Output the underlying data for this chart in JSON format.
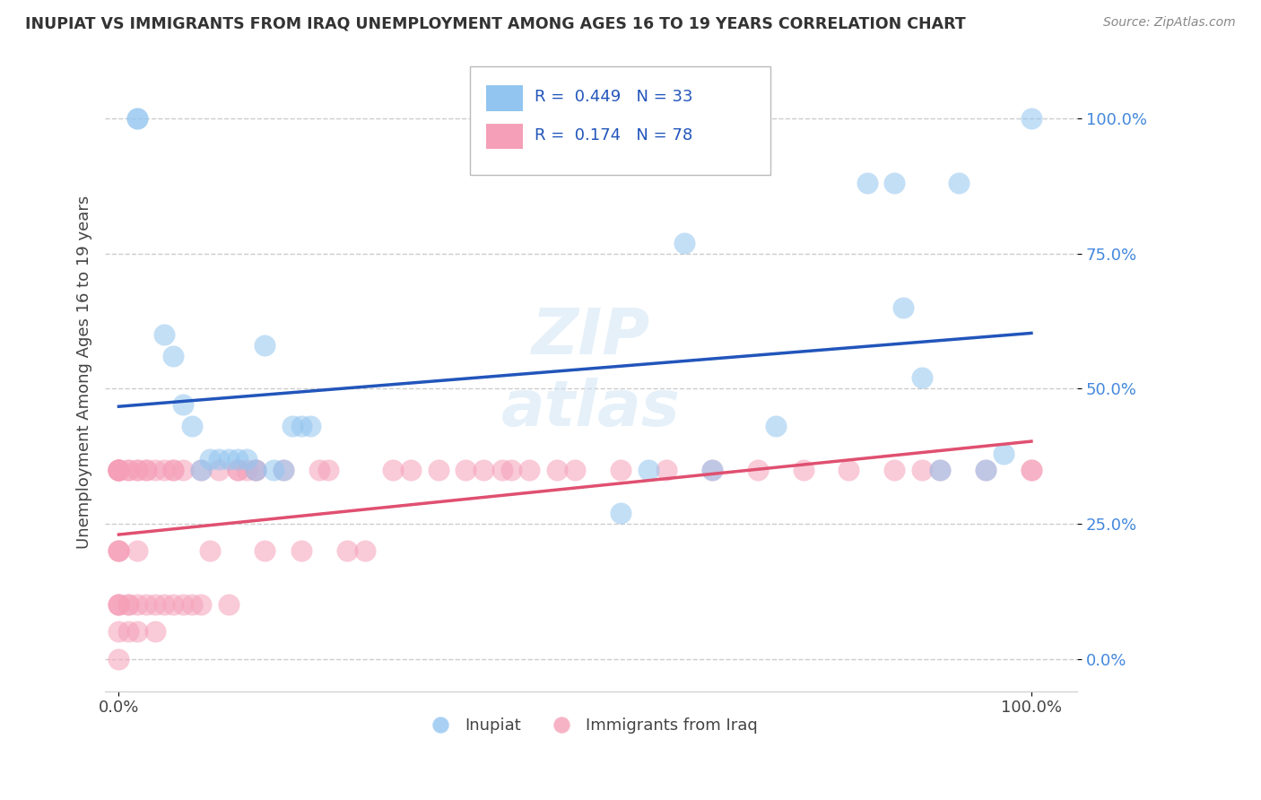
{
  "title": "INUPIAT VS IMMIGRANTS FROM IRAQ UNEMPLOYMENT AMONG AGES 16 TO 19 YEARS CORRELATION CHART",
  "source_text": "Source: ZipAtlas.com",
  "ylabel": "Unemployment Among Ages 16 to 19 years",
  "watermark": "ZIPatlas",
  "blue_color": "#92c5f0",
  "pink_color": "#f5a0b8",
  "blue_line_color": "#2255bb",
  "pink_line_color": "#e05070",
  "pink_dash_color": "#e08090",
  "grid_color": "#cccccc",
  "background_color": "#ffffff",
  "ytick_labels": [
    "0.0%",
    "25.0%",
    "50.0%",
    "75.0%",
    "100.0%"
  ],
  "ytick_values": [
    0.0,
    0.25,
    0.5,
    0.75,
    1.0
  ],
  "inupiat_x": [
    0.02,
    0.02,
    0.05,
    0.06,
    0.07,
    0.08,
    0.09,
    0.1,
    0.11,
    0.12,
    0.13,
    0.14,
    0.15,
    0.16,
    0.17,
    0.18,
    0.19,
    0.2,
    0.21,
    0.55,
    0.58,
    0.62,
    0.65,
    0.72,
    0.82,
    0.85,
    0.86,
    0.88,
    0.9,
    0.92,
    0.95,
    0.97,
    1.0
  ],
  "inupiat_y": [
    1.0,
    1.0,
    0.6,
    0.56,
    0.47,
    0.43,
    0.35,
    0.37,
    0.37,
    0.37,
    0.37,
    0.37,
    0.35,
    0.58,
    0.35,
    0.35,
    0.43,
    0.43,
    0.43,
    0.27,
    0.35,
    0.77,
    0.35,
    0.43,
    0.88,
    0.88,
    0.65,
    0.52,
    0.35,
    0.88,
    0.35,
    0.38,
    1.0
  ],
  "iraq_x": [
    0.0,
    0.0,
    0.0,
    0.0,
    0.0,
    0.0,
    0.0,
    0.0,
    0.0,
    0.0,
    0.0,
    0.0,
    0.0,
    0.0,
    0.0,
    0.01,
    0.01,
    0.01,
    0.01,
    0.01,
    0.02,
    0.02,
    0.02,
    0.02,
    0.02,
    0.03,
    0.03,
    0.03,
    0.04,
    0.04,
    0.04,
    0.05,
    0.05,
    0.06,
    0.06,
    0.06,
    0.07,
    0.07,
    0.08,
    0.09,
    0.09,
    0.1,
    0.11,
    0.12,
    0.13,
    0.13,
    0.14,
    0.15,
    0.15,
    0.16,
    0.18,
    0.2,
    0.22,
    0.23,
    0.25,
    0.27,
    0.3,
    0.32,
    0.35,
    0.38,
    0.4,
    0.42,
    0.43,
    0.45,
    0.48,
    0.5,
    0.55,
    0.6,
    0.65,
    0.7,
    0.75,
    0.8,
    0.85,
    0.88,
    0.9,
    0.95,
    1.0,
    1.0
  ],
  "iraq_y": [
    0.35,
    0.35,
    0.35,
    0.35,
    0.35,
    0.35,
    0.35,
    0.2,
    0.2,
    0.2,
    0.1,
    0.1,
    0.1,
    0.05,
    0.0,
    0.35,
    0.35,
    0.1,
    0.1,
    0.05,
    0.35,
    0.35,
    0.2,
    0.1,
    0.05,
    0.35,
    0.35,
    0.1,
    0.35,
    0.1,
    0.05,
    0.35,
    0.1,
    0.35,
    0.35,
    0.1,
    0.35,
    0.1,
    0.1,
    0.35,
    0.1,
    0.2,
    0.35,
    0.1,
    0.35,
    0.35,
    0.35,
    0.35,
    0.35,
    0.2,
    0.35,
    0.2,
    0.35,
    0.35,
    0.2,
    0.2,
    0.35,
    0.35,
    0.35,
    0.35,
    0.35,
    0.35,
    0.35,
    0.35,
    0.35,
    0.35,
    0.35,
    0.35,
    0.35,
    0.35,
    0.35,
    0.35,
    0.35,
    0.35,
    0.35,
    0.35,
    0.35,
    0.35
  ]
}
